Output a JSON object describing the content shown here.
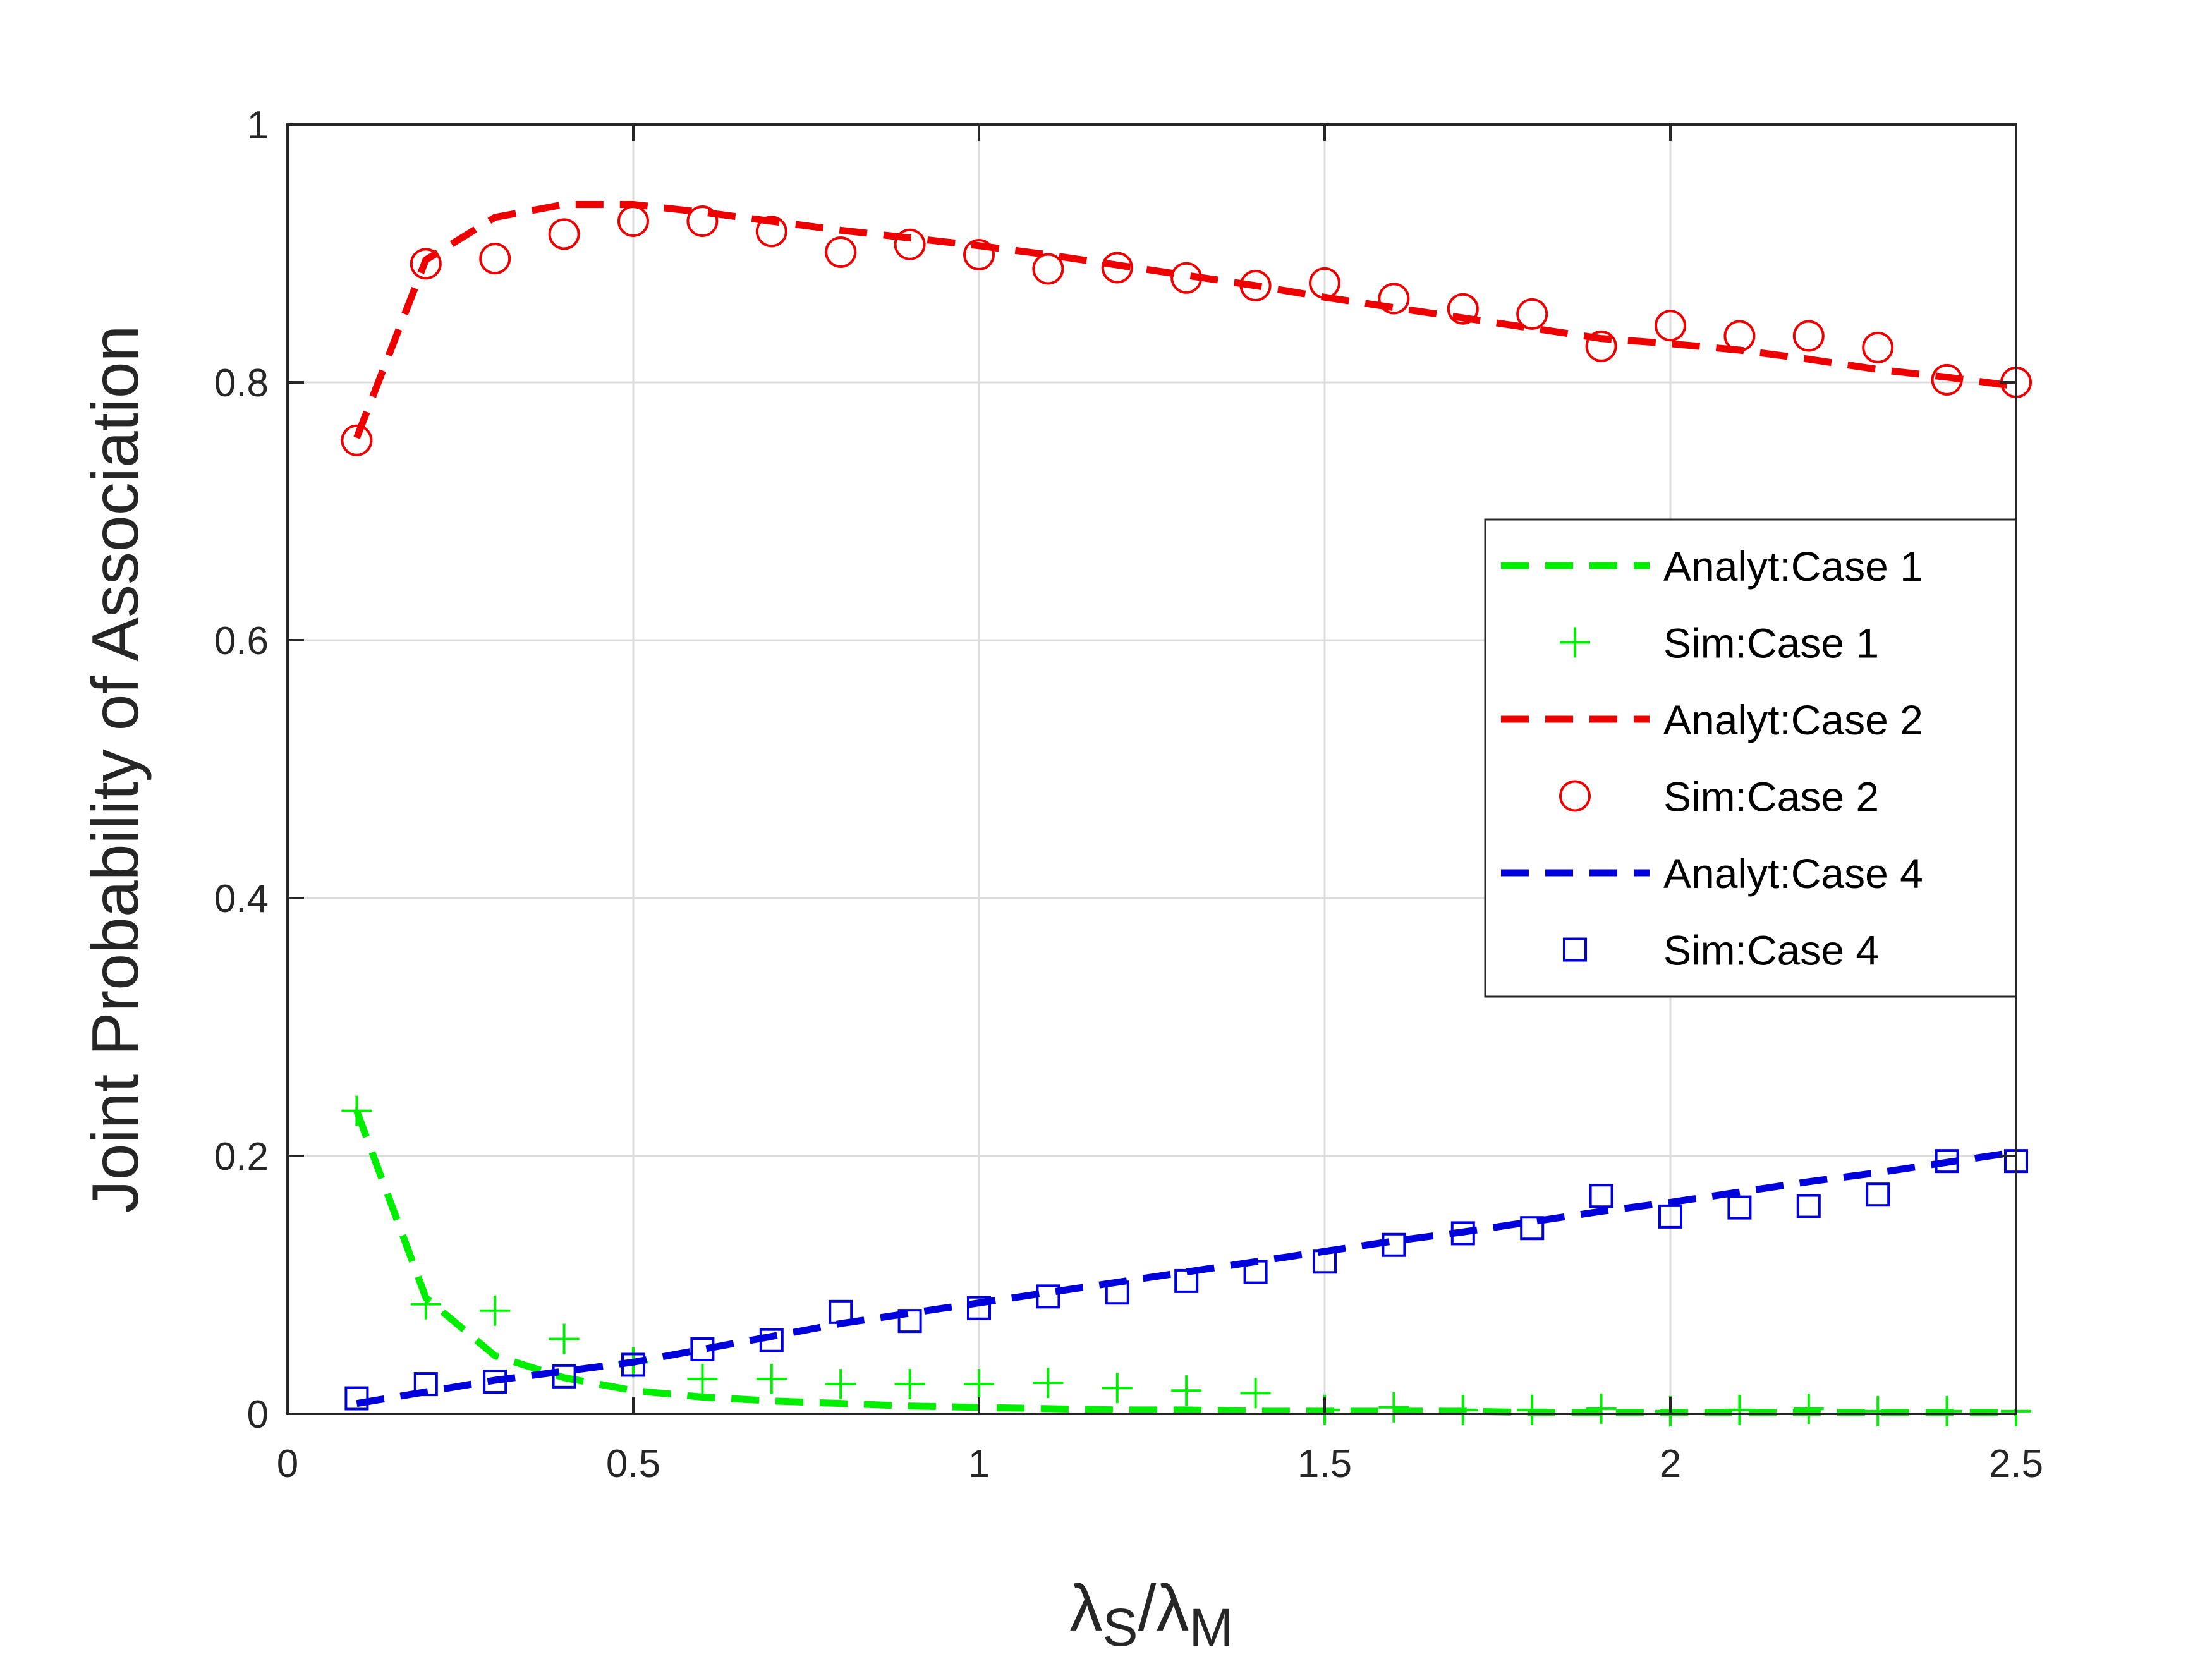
{
  "chart_data": {
    "type": "line",
    "title": "",
    "xlabel": {
      "main1": "λ",
      "sub1": "S",
      "sep": "/",
      "main2": "λ",
      "sub2": "M"
    },
    "ylabel": "Joint Probability of Association",
    "xlim": [
      0,
      2.5
    ],
    "ylim": [
      0,
      1
    ],
    "x_ticks": [
      0,
      0.5,
      1,
      1.5,
      2,
      2.5
    ],
    "x_tick_labels": [
      "0",
      "0.5",
      "1",
      "1.5",
      "2",
      "2.5"
    ],
    "y_ticks": [
      0,
      0.2,
      0.4,
      0.6,
      0.8,
      1
    ],
    "y_tick_labels": [
      "0",
      "0.2",
      "0.4",
      "0.6",
      "0.8",
      "1"
    ],
    "grid": true,
    "legend_position": "right-middle",
    "x": [
      0.1,
      0.2,
      0.3,
      0.4,
      0.5,
      0.6,
      0.7,
      0.8,
      0.9,
      1.0,
      1.1,
      1.2,
      1.3,
      1.4,
      1.5,
      1.6,
      1.7,
      1.8,
      1.9,
      2.0,
      2.1,
      2.2,
      2.3,
      2.4,
      2.5
    ],
    "series": [
      {
        "name": "Analyt:Case 1",
        "style": "dashed",
        "color": "#00ee00",
        "values": [
          0.235,
          0.09,
          0.045,
          0.028,
          0.018,
          0.013,
          0.01,
          0.008,
          0.006,
          0.005,
          0.004,
          0.003,
          0.003,
          0.002,
          0.002,
          0.002,
          0.002,
          0.001,
          0.001,
          0.001,
          0.001,
          0.001,
          0.001,
          0.001,
          0.001
        ]
      },
      {
        "name": "Sim:Case 1",
        "style": "plus",
        "color": "#00ee00",
        "values": [
          0.235,
          0.085,
          0.08,
          0.058,
          0.04,
          0.027,
          0.027,
          0.023,
          0.023,
          0.023,
          0.024,
          0.02,
          0.018,
          0.016,
          0.003,
          0.005,
          0.003,
          0.003,
          0.004,
          0.002,
          0.003,
          0.004,
          0.002,
          0.002,
          0.002
        ]
      },
      {
        "name": "Analyt:Case 2",
        "style": "dashed",
        "color": "#ee0000",
        "values": [
          0.757,
          0.895,
          0.928,
          0.938,
          0.938,
          0.932,
          0.925,
          0.918,
          0.912,
          0.906,
          0.899,
          0.891,
          0.883,
          0.875,
          0.866,
          0.858,
          0.85,
          0.842,
          0.834,
          0.83,
          0.825,
          0.818,
          0.81,
          0.804,
          0.797
        ]
      },
      {
        "name": "Sim:Case 2",
        "style": "circle",
        "color": "#ee0000",
        "values": [
          0.755,
          0.892,
          0.896,
          0.915,
          0.925,
          0.925,
          0.917,
          0.901,
          0.907,
          0.899,
          0.888,
          0.889,
          0.881,
          0.875,
          0.877,
          0.865,
          0.857,
          0.853,
          0.828,
          0.844,
          0.836,
          0.836,
          0.827,
          0.802,
          0.8
        ]
      },
      {
        "name": "Analyt:Case 4",
        "style": "dashed",
        "color": "#0000dd",
        "values": [
          0.008,
          0.017,
          0.026,
          0.033,
          0.04,
          0.05,
          0.06,
          0.07,
          0.078,
          0.086,
          0.094,
          0.102,
          0.11,
          0.118,
          0.126,
          0.134,
          0.141,
          0.149,
          0.157,
          0.164,
          0.172,
          0.18,
          0.187,
          0.195,
          0.203
        ]
      },
      {
        "name": "Sim:Case 4",
        "style": "square",
        "color": "#0000dd",
        "values": [
          0.012,
          0.023,
          0.025,
          0.029,
          0.038,
          0.05,
          0.057,
          0.079,
          0.072,
          0.082,
          0.091,
          0.094,
          0.103,
          0.11,
          0.118,
          0.131,
          0.14,
          0.144,
          0.169,
          0.153,
          0.16,
          0.161,
          0.17,
          0.196,
          0.196
        ]
      }
    ]
  }
}
